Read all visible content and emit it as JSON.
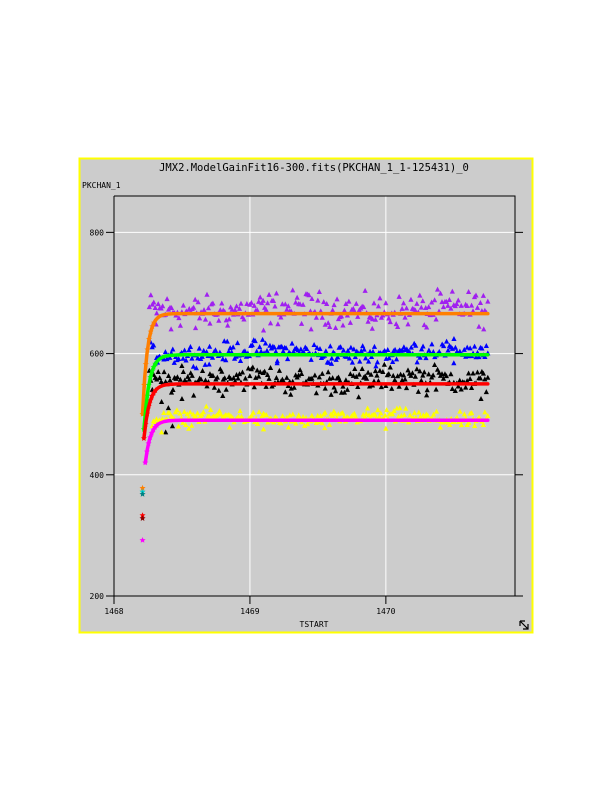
{
  "window": {
    "border_color": "#ffff00",
    "background_color": "#cccccc",
    "grid_color": "#ffffff",
    "resize_icon": "resize-corner-icon"
  },
  "chart_data": {
    "type": "scatter",
    "title": "JMX2.ModelGainFit16-300.fits(PKCHAN_1_1-125431)_0",
    "xlabel": "TSTART",
    "ylabel": "PKCHAN_1",
    "xlim": [
      1468.0,
      1470.95
    ],
    "ylim": [
      200,
      860
    ],
    "grid": true,
    "x_ticks": [
      {
        "value": 1468,
        "label": "1468"
      },
      {
        "value": 1469,
        "label": "1469"
      },
      {
        "value": 1470,
        "label": "1470"
      }
    ],
    "y_ticks": [
      {
        "value": 200,
        "label": "200"
      },
      {
        "value": 400,
        "label": "400"
      },
      {
        "value": 600,
        "label": "600"
      },
      {
        "value": 800,
        "label": "800"
      }
    ],
    "x_range_of_data": [
      1468.21,
      1470.75
    ],
    "series": [
      {
        "color": "#a020f0",
        "marker": "triangle",
        "level": 672,
        "spread": 13,
        "start": 1468.26,
        "outliers": [
          [
            1468.31,
            648
          ],
          [
            1468.42,
            640
          ],
          [
            1468.6,
            642
          ],
          [
            1469.1,
            638
          ],
          [
            1469.45,
            640
          ],
          [
            1469.9,
            641
          ],
          [
            1470.3,
            643
          ],
          [
            1470.72,
            640
          ]
        ]
      },
      {
        "color": "#0000ff",
        "marker": "triangle",
        "level": 602,
        "spread": 8,
        "start": 1468.27,
        "outliers": [
          [
            1468.32,
            585
          ],
          [
            1468.7,
            582
          ],
          [
            1469.2,
            584
          ],
          [
            1469.6,
            583
          ],
          [
            1470.05,
            586
          ],
          [
            1470.5,
            584
          ]
        ]
      },
      {
        "color": "#000000",
        "marker": "triangle",
        "level": 557,
        "spread": 10,
        "start": 1468.26,
        "outliers": [
          [
            1468.35,
            520
          ],
          [
            1468.4,
            510
          ],
          [
            1468.43,
            480
          ],
          [
            1468.38,
            470
          ],
          [
            1468.5,
            525
          ],
          [
            1468.8,
            530
          ],
          [
            1469.3,
            532
          ],
          [
            1469.8,
            528
          ],
          [
            1470.3,
            531
          ],
          [
            1470.7,
            525
          ]
        ]
      },
      {
        "color": "#ffff00",
        "marker": "triangle",
        "level": 493,
        "spread": 6,
        "start": 1468.28,
        "outliers": [
          [
            1468.35,
            470
          ],
          [
            1468.55,
            476
          ],
          [
            1468.85,
            478
          ],
          [
            1469.1,
            475
          ],
          [
            1469.55,
            477
          ],
          [
            1470.0,
            476
          ],
          [
            1470.4,
            478
          ]
        ]
      }
    ],
    "fit_curves": [
      {
        "color": "#ff7f00",
        "start_x": 1468.21,
        "start_y": 500,
        "asymptote": 666,
        "tau": 0.035,
        "drift": 0
      },
      {
        "color": "#00ff00",
        "start_x": 1468.22,
        "start_y": 475,
        "asymptote": 598,
        "tau": 0.04,
        "drift": 0
      },
      {
        "color": "#ff0000",
        "start_x": 1468.22,
        "start_y": 460,
        "asymptote": 550,
        "tau": 0.04,
        "drift": 0
      },
      {
        "color": "#ff00ff",
        "start_x": 1468.23,
        "start_y": 420,
        "asymptote": 490,
        "tau": 0.04,
        "drift": 0
      }
    ],
    "early_points": [
      {
        "x": 1468.21,
        "y": 378,
        "color": "#ff7f00",
        "marker": "star"
      },
      {
        "x": 1468.21,
        "y": 372,
        "color": "#00ced1",
        "marker": "star"
      },
      {
        "x": 1468.21,
        "y": 368,
        "color": "#008080",
        "marker": "star"
      },
      {
        "x": 1468.21,
        "y": 333,
        "color": "#ff0000",
        "marker": "star"
      },
      {
        "x": 1468.21,
        "y": 328,
        "color": "#8b0000",
        "marker": "star"
      },
      {
        "x": 1468.21,
        "y": 292,
        "color": "#ff00ff",
        "marker": "star"
      }
    ]
  }
}
